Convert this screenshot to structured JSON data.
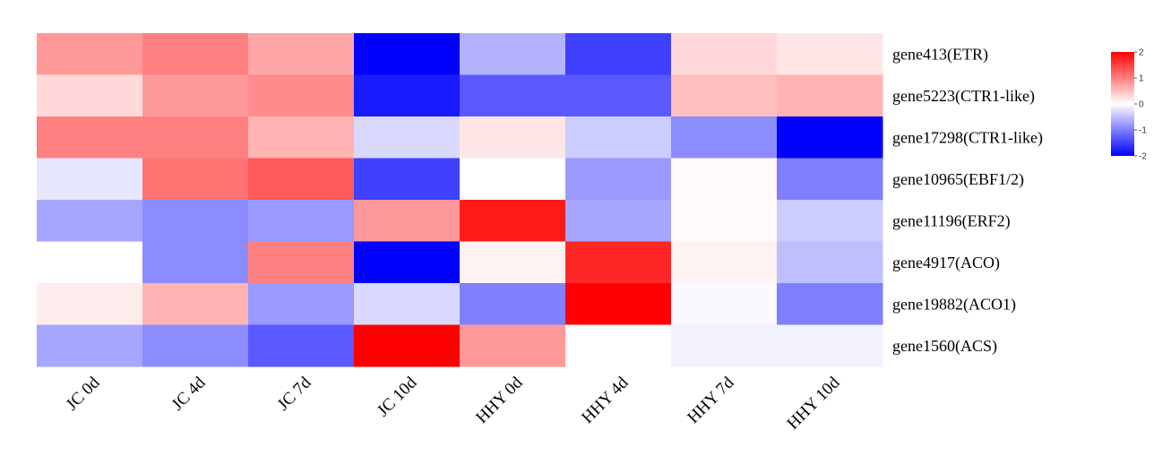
{
  "chart_data": {
    "type": "heatmap",
    "columns": [
      "JC 0d",
      "JC 4d",
      "JC 7d",
      "JC 10d",
      "HHY 0d",
      "HHY 4d",
      "HHY 7d",
      "HHY 10d"
    ],
    "rows": [
      "gene413(ETR)",
      "gene5223(CTR1-like)",
      "gene17298(CTR1-like)",
      "gene10965(EBF1/2)",
      "gene11196(ERF2)",
      "gene4917(ACO)",
      "gene19882(ACO1)",
      "gene1560(ACS)"
    ],
    "values": [
      [
        0.8,
        1.0,
        0.7,
        -2.0,
        -0.6,
        -1.5,
        0.3,
        0.2
      ],
      [
        0.3,
        0.8,
        0.9,
        -1.8,
        -1.3,
        -1.3,
        0.5,
        0.6
      ],
      [
        1.0,
        1.0,
        0.6,
        -0.3,
        0.2,
        -0.4,
        -0.9,
        -2.0
      ],
      [
        -0.2,
        1.1,
        1.3,
        -1.5,
        0.0,
        -0.8,
        0.05,
        -1.0
      ],
      [
        -0.7,
        -0.9,
        -0.8,
        0.8,
        1.8,
        -0.7,
        0.05,
        -0.4
      ],
      [
        0.0,
        -0.9,
        1.0,
        -2.0,
        0.1,
        1.7,
        0.1,
        -0.5
      ],
      [
        0.15,
        0.6,
        -0.8,
        -0.3,
        -1.0,
        2.2,
        -0.05,
        -1.0
      ],
      [
        -0.7,
        -0.9,
        -1.3,
        2.2,
        0.8,
        0.0,
        -0.1,
        -0.1
      ]
    ],
    "colorscale": {
      "min": -2,
      "mid": 0,
      "max": 2,
      "low": "#0000ff",
      "mid_color": "#ffffff",
      "high": "#ff0000"
    },
    "legend": {
      "ticks": [
        "2",
        "1",
        "0",
        "-1",
        "-2"
      ],
      "tick_values": [
        2,
        1,
        0,
        -1,
        -2
      ],
      "position": "top-right"
    }
  }
}
